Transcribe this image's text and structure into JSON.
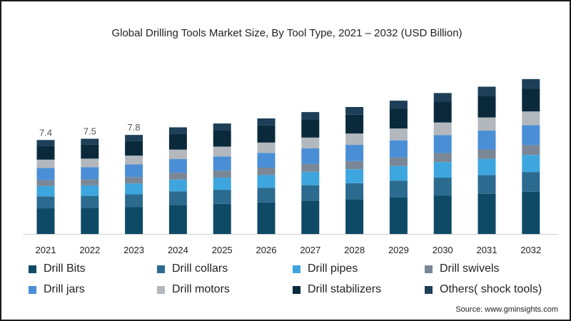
{
  "chart_data": {
    "type": "bar",
    "stacked": true,
    "title": "Global Drilling Tools Market Size, By Tool Type, 2021 – 2032 (USD Billion)",
    "categories": [
      "2021",
      "2022",
      "2023",
      "2024",
      "2025",
      "2026",
      "2027",
      "2028",
      "2029",
      "2030",
      "2031",
      "2032"
    ],
    "totals": [
      7.4,
      7.5,
      7.8,
      8.4,
      8.7,
      9.1,
      9.6,
      10.0,
      10.5,
      11.1,
      11.6,
      12.2
    ],
    "total_labels": [
      "7.4",
      "7.5",
      "7.8",
      "",
      "",
      "",
      "",
      "",
      "",
      "",
      "",
      ""
    ],
    "series": [
      {
        "name": "Drill Bits",
        "color": "#0e4a66",
        "share": 0.273
      },
      {
        "name": "Drill collars",
        "color": "#2b6b8f",
        "share": 0.127
      },
      {
        "name": "Drill pipes",
        "color": "#3ea6df",
        "share": 0.11
      },
      {
        "name": "Drill swivels",
        "color": "#7a8797",
        "share": 0.064
      },
      {
        "name": "Drill jars",
        "color": "#4a8fd6",
        "share": 0.128
      },
      {
        "name": "Drill motors",
        "color": "#b2b8be",
        "share": 0.089
      },
      {
        "name": "Drill stabilizers",
        "color": "#0a2a3c",
        "share": 0.148
      },
      {
        "name": "Others( shock tools)",
        "color": "#1d3f58",
        "share": 0.061
      }
    ],
    "ylim": [
      0,
      13
    ],
    "xlabel": "",
    "ylabel": "",
    "grid": false,
    "legend_position": "bottom"
  },
  "source": "Source: www.gminsights.com"
}
